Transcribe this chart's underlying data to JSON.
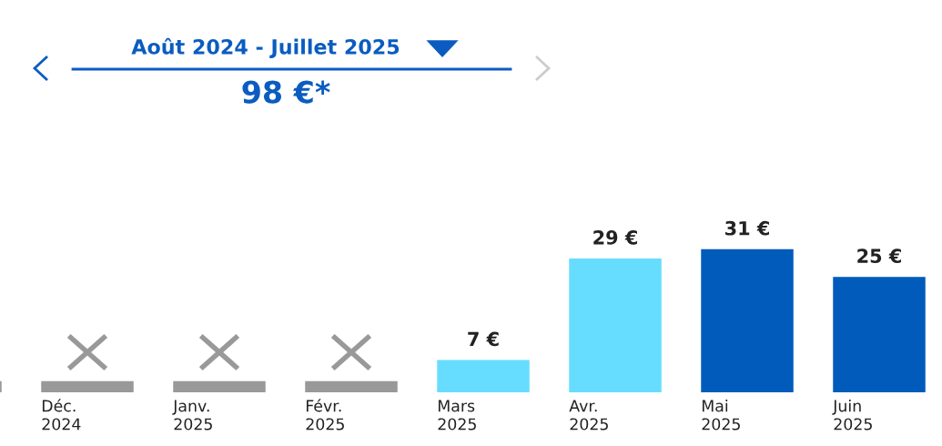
{
  "chart_data": {
    "type": "bar",
    "title": "Août 2024 - Juillet 2025",
    "subtitle": "98 €*",
    "categories": [
      null,
      "Déc.\n2024",
      "Janv.\n2025",
      "Févr.\n2025",
      "Mars\n2025",
      "Avr.\n2025",
      "Mai\n2025",
      "Juin\n2025"
    ],
    "values": [
      null,
      null,
      null,
      null,
      7,
      29,
      31,
      25
    ],
    "colors": [
      "#999999",
      "#999999",
      "#999999",
      "#999999",
      "#66ddff",
      "#66ddff",
      "#005bbb",
      "#005bbb"
    ],
    "value_labels": [
      null,
      null,
      null,
      null,
      "7 €",
      "29 €",
      "31 €",
      "25 €"
    ],
    "data_labels": false
  }
}
